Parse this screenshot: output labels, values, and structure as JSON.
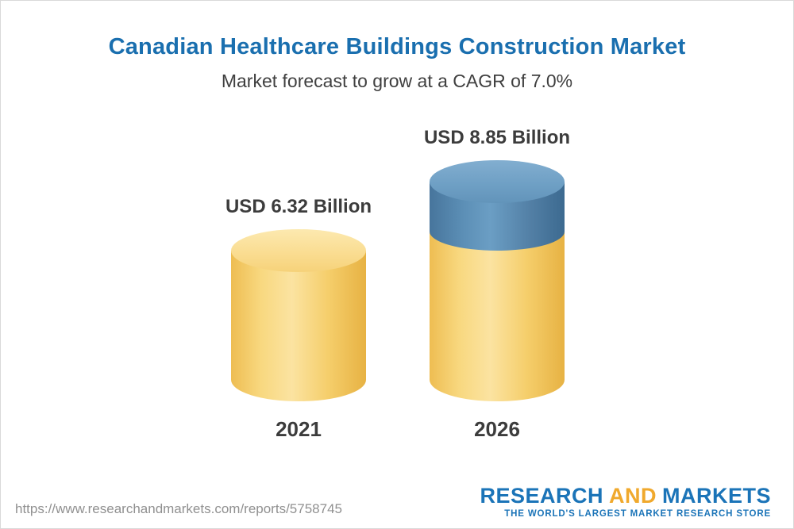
{
  "header": {
    "title": "Canadian Healthcare Buildings Construction Market",
    "subtitle": "Market forecast to grow at a CAGR of 7.0%"
  },
  "chart_data": {
    "type": "bar",
    "bar_style": "3d-cylinder",
    "title": "Canadian Healthcare Buildings Construction Market",
    "subtitle": "Market forecast to grow at a CAGR of 7.0%",
    "categories": [
      "2021",
      "2026"
    ],
    "values": [
      6.32,
      8.85
    ],
    "value_labels": [
      "USD 6.32 Billion",
      "USD 8.85 Billion"
    ],
    "unit": "USD Billion",
    "cagr_percent": 7.0,
    "ylim": [
      0,
      8.85
    ],
    "grid": false,
    "legend": false,
    "colors": {
      "base_segment": "#F6CE6C",
      "growth_segment": "#5B8DB4",
      "title_text": "#1A6FAF",
      "label_text": "#3C3C3C"
    }
  },
  "footer": {
    "url": "https://www.researchandmarkets.com/reports/5758745",
    "logo": {
      "line1_part1": "RESEARCH",
      "line1_part2": "AND",
      "line1_part3": "MARKETS",
      "tagline": "THE WORLD'S LARGEST MARKET RESEARCH STORE"
    }
  }
}
